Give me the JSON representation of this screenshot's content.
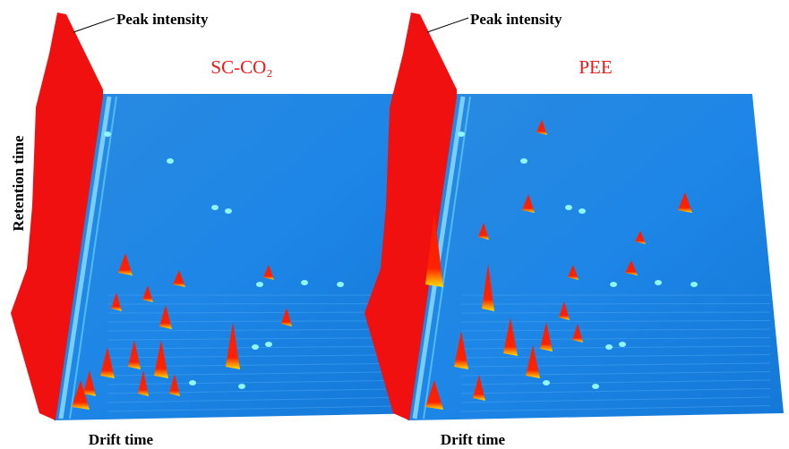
{
  "y_label": "Retention time",
  "panels": [
    {
      "title": "SC-CO₂",
      "peak_label": "Peak intensity",
      "x_label": "Drift time"
    },
    {
      "title": "PEE",
      "peak_label": "Peak intensity",
      "x_label": "Drift time"
    }
  ]
}
